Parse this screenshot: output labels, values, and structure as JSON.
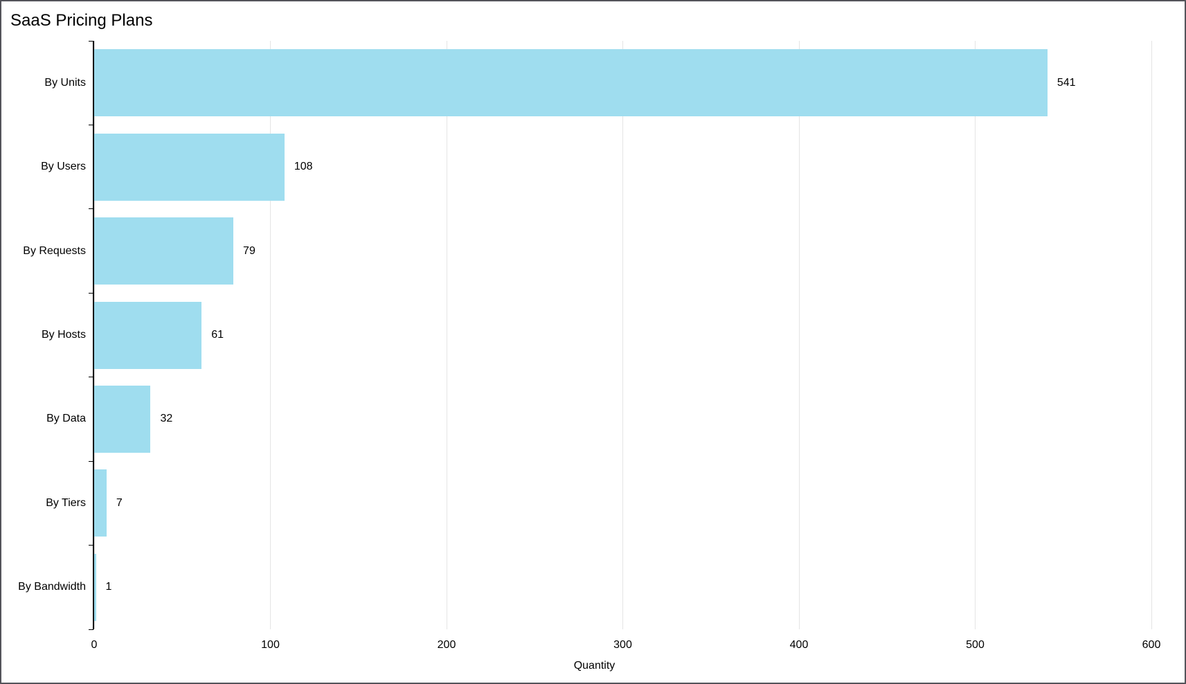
{
  "title": "SaaS Pricing Plans",
  "chart_data": {
    "type": "bar",
    "orientation": "horizontal",
    "title": "SaaS Pricing Plans",
    "xlabel": "Quantity",
    "ylabel": "",
    "categories": [
      "By Units",
      "By Users",
      "By Requests",
      "By Hosts",
      "By Data",
      "By Tiers",
      "By Bandwidth"
    ],
    "values": [
      541,
      108,
      79,
      61,
      32,
      7,
      1
    ],
    "value_labels": [
      "541",
      "108",
      "79",
      "61",
      "32",
      "7",
      "1"
    ],
    "xlim": [
      0,
      600
    ],
    "xticks": [
      0,
      100,
      200,
      300,
      400,
      500,
      600
    ],
    "grid": true,
    "legend": false,
    "bar_color": "#9fddef",
    "grid_color": "#e4e4e4",
    "axis_color": "#000000",
    "text_color": "#000000"
  }
}
